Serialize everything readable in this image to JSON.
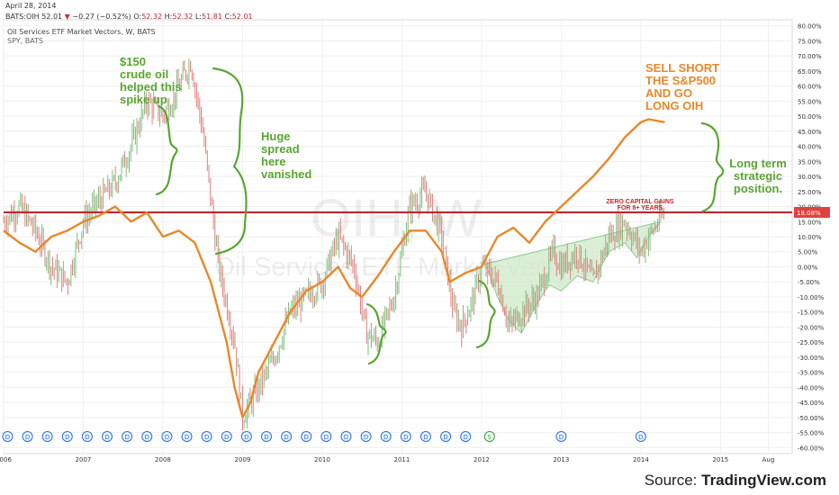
{
  "header": {
    "date": "April 28, 2014",
    "symbol": "BATS:OIH",
    "last": "52.01",
    "change": "−0.27 (−0.52%)",
    "o_label": "O:",
    "o": "52.32",
    "h_label": "H:",
    "h": "52.32",
    "l_label": "L:",
    "l": "51.81",
    "c_label": "C:",
    "c": "52.01",
    "title": "Oil Services ETF Market Vectors, W, BATS",
    "compare": "SPY, BATS"
  },
  "watermark": {
    "ticker": "OIH, W",
    "name": "Oil Services ETF Market Vectors"
  },
  "source": {
    "prefix": "Source:",
    "brand": "TradingView.com"
  },
  "annotations": {
    "crude": [
      "$150",
      "crude oil",
      "helped this",
      "spike up"
    ],
    "spread": [
      "Huge",
      "spread",
      "here",
      "vanished"
    ],
    "sell": [
      "SELL SHORT",
      "THE S&P500",
      "AND GO",
      "LONG OIH"
    ],
    "longterm": [
      "Long term",
      "strategic",
      "position."
    ],
    "zero": [
      "ZERO CAPITAL GAINS",
      "FOR 8+ YEARS"
    ]
  },
  "colors": {
    "price_up": "#7fbf7f",
    "price_down": "#e08080",
    "spy_line": "#e8882a",
    "ref_line": "#c0282c",
    "green_annotation": "#5aa532",
    "orange_annotation": "#e8882a",
    "zone_fill": "#cfe8c8",
    "event_icons": "#2a6fdb",
    "current_badge": "#e04040"
  },
  "chart_data": {
    "type": "line",
    "title": "Oil Services ETF Market Vectors, W, BATS",
    "y_unit": "%",
    "ylim": [
      -62,
      82
    ],
    "y_ticks": [
      80,
      75,
      70,
      65,
      60,
      55,
      50,
      45,
      40,
      35,
      30,
      25,
      20,
      15,
      10,
      5,
      0,
      -5,
      -10,
      -15,
      -20,
      -25,
      -30,
      -35,
      -40,
      -45,
      -50,
      -55,
      -60
    ],
    "xlim": [
      2006.0,
      2015.9
    ],
    "x_ticks": [
      {
        "label": "2006",
        "x": 2006.0
      },
      {
        "label": "2007",
        "x": 2007.0
      },
      {
        "label": "2008",
        "x": 2008.0
      },
      {
        "label": "2009",
        "x": 2009.0
      },
      {
        "label": "2010",
        "x": 2010.0
      },
      {
        "label": "2011",
        "x": 2011.0
      },
      {
        "label": "2012",
        "x": 2012.0
      },
      {
        "label": "2013",
        "x": 2013.0
      },
      {
        "label": "2014",
        "x": 2014.0
      },
      {
        "label": "2015",
        "x": 2015.0
      },
      {
        "label": "Aug",
        "x": 2015.6
      }
    ],
    "reference_line": {
      "label": "18.08%",
      "value": 18.08
    },
    "series": [
      {
        "name": "",
        "role": "price",
        "x": [
          2006.0,
          2006.2,
          2006.4,
          2006.6,
          2006.8,
          2007.0,
          2007.2,
          2007.4,
          2007.6,
          2007.8,
          2008.0,
          2008.2,
          2008.35,
          2008.5,
          2008.7,
          2008.9,
          2009.0,
          2009.2,
          2009.4,
          2009.6,
          2009.8,
          2010.0,
          2010.2,
          2010.4,
          2010.55,
          2010.7,
          2010.9,
          2011.0,
          2011.1,
          2011.3,
          2011.5,
          2011.65,
          2011.75,
          2011.9,
          2012.0,
          2012.2,
          2012.35,
          2012.5,
          2012.7,
          2012.9,
          2013.0,
          2013.2,
          2013.4,
          2013.6,
          2013.8,
          2014.0,
          2014.1,
          2014.3
        ],
        "y": [
          15,
          20,
          12,
          0,
          -5,
          15,
          22,
          28,
          40,
          55,
          50,
          60,
          68,
          45,
          0,
          -25,
          -50,
          -40,
          -30,
          -15,
          -10,
          -5,
          10,
          0,
          -22,
          -25,
          -10,
          5,
          20,
          25,
          10,
          -15,
          -20,
          -10,
          0,
          -5,
          -20,
          -15,
          -10,
          5,
          0,
          5,
          -5,
          10,
          15,
          5,
          10,
          18
        ]
      },
      {
        "name": "",
        "role": "compare",
        "x": [
          2006.0,
          2006.2,
          2006.4,
          2006.6,
          2006.8,
          2007.0,
          2007.2,
          2007.4,
          2007.6,
          2007.8,
          2008.0,
          2008.2,
          2008.4,
          2008.6,
          2008.8,
          2008.9,
          2009.0,
          2009.1,
          2009.2,
          2009.4,
          2009.6,
          2009.8,
          2010.0,
          2010.2,
          2010.35,
          2010.5,
          2010.7,
          2010.9,
          2011.1,
          2011.3,
          2011.5,
          2011.6,
          2011.8,
          2012.0,
          2012.2,
          2012.4,
          2012.6,
          2012.8,
          2013.0,
          2013.2,
          2013.4,
          2013.6,
          2013.8,
          2014.0,
          2014.1,
          2014.3
        ],
        "y": [
          12,
          8,
          5,
          10,
          12,
          15,
          17,
          20,
          15,
          18,
          10,
          12,
          8,
          -5,
          -25,
          -40,
          -50,
          -45,
          -35,
          -25,
          -15,
          -8,
          -5,
          0,
          -7,
          -10,
          -3,
          5,
          12,
          12,
          5,
          -5,
          -2,
          0,
          10,
          13,
          8,
          15,
          20,
          25,
          30,
          36,
          43,
          48,
          49,
          48
        ]
      }
    ],
    "shaded_zone": {
      "x": [
        2012.05,
        2012.2,
        2012.35,
        2012.5,
        2012.7,
        2012.85,
        2013.0,
        2013.2,
        2013.4,
        2013.6,
        2013.8,
        2013.95,
        2014.1,
        2014.25,
        2014.25
      ],
      "y": [
        1,
        -10,
        -18,
        -22,
        -12,
        -6,
        -8,
        -3,
        -5,
        5,
        8,
        3,
        10,
        15,
        15
      ]
    },
    "event_markers": {
      "dividend_years": [
        2006.05,
        2006.3,
        2006.55,
        2006.8,
        2007.05,
        2007.3,
        2007.55,
        2007.8,
        2008.05,
        2008.3,
        2008.55,
        2008.8,
        2009.05,
        2009.3,
        2009.55,
        2009.8,
        2010.05,
        2010.3,
        2010.55,
        2010.8,
        2011.05,
        2011.3,
        2011.55,
        2011.8,
        2013.0,
        2014.0
      ],
      "split": {
        "label": "S",
        "x": 2012.1
      },
      "icon_label": "D"
    },
    "current_value_label": "18.08%"
  }
}
